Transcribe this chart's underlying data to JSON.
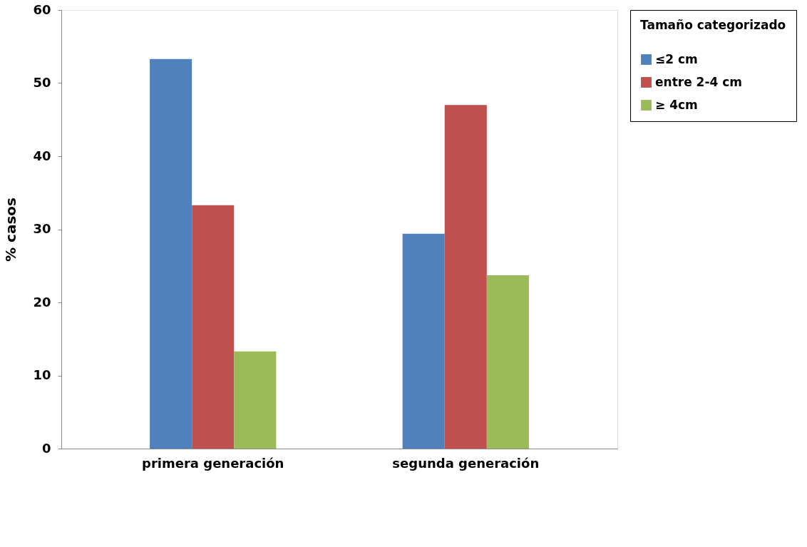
{
  "chart_data": {
    "type": "bar",
    "ylabel": "% casos",
    "legend_title": "Tamaño categorizado",
    "legend": "right",
    "grid": false,
    "categories": [
      "primera generación",
      "segunda generación"
    ],
    "series": [
      {
        "name": "≤2 cm",
        "color": "#4f81bd",
        "values": [
          53.3,
          29.4
        ]
      },
      {
        "name": "entre 2-4 cm",
        "color": "#c0504d",
        "values": [
          33.3,
          47.0
        ]
      },
      {
        "name": "≥ 4cm",
        "color": "#9bbb59",
        "values": [
          13.3,
          23.7
        ]
      }
    ],
    "ylim": [
      0,
      60
    ],
    "yticks": [
      0,
      10,
      20,
      30,
      40,
      50,
      60
    ]
  }
}
